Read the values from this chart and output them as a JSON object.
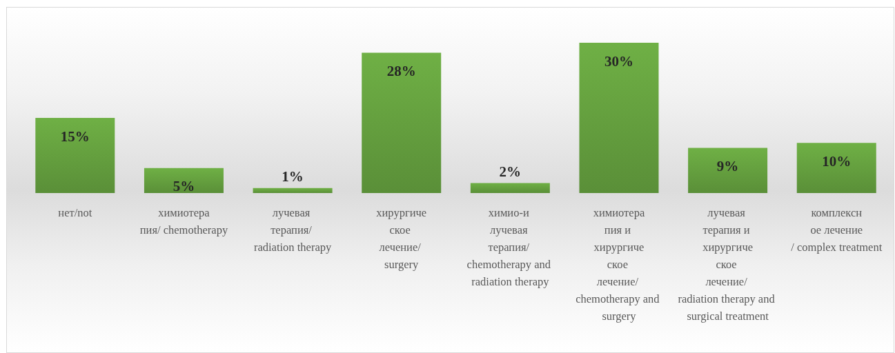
{
  "chart_data": {
    "type": "bar",
    "categories": [
      "нет/not",
      "химиотерапия/ chemotherapy",
      "лучевая терапия/ radiation therapy",
      "хирургическое лечение/ surgery",
      "химио-и лучевая терапия/ chemotherapy and radiation therapy",
      "химиотерапия и хирургическое лечение/ chemotherapy and surgery",
      "лучевая терапия и хирургическое лечение/ radiation therapy and surgical treatment",
      "комплексное лечение/ complex treatment"
    ],
    "values": [
      15,
      5,
      1,
      28,
      2,
      30,
      9,
      10
    ],
    "value_labels": [
      "15%",
      "5%",
      "1%",
      "28%",
      "2%",
      "30%",
      "9%",
      "10%"
    ],
    "color": "#6aa842"
  }
}
